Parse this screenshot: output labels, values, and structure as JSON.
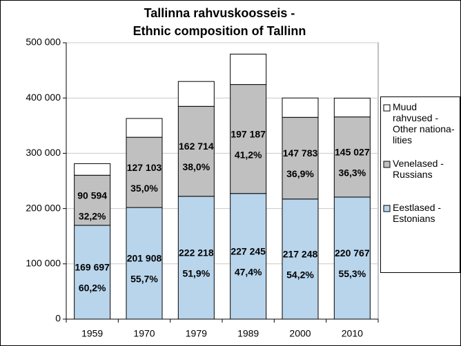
{
  "chart_data": {
    "type": "stacked_bar",
    "title": "Tallinna rahvuskoosseis -",
    "subtitle": "Ethnic composition of Tallinn",
    "categories": [
      "1959",
      "1970",
      "1979",
      "1989",
      "2000",
      "2010"
    ],
    "series": [
      {
        "name": "Eestlased - Estonians",
        "color": "#b9d5ec",
        "values": [
          169697,
          201908,
          222218,
          227245,
          217248,
          220767
        ],
        "value_labels": [
          "169 697",
          "201 908",
          "222 218",
          "227 245",
          "217 248",
          "220 767"
        ],
        "shares": [
          "60,2%",
          "55,7%",
          "51,9%",
          "47,4%",
          "54,2%",
          "55,3%"
        ]
      },
      {
        "name": "Venelased - Russians",
        "color": "#c0c0c0",
        "values": [
          90594,
          127103,
          162714,
          197187,
          147783,
          145027
        ],
        "value_labels": [
          "90 594",
          "127 103",
          "162 714",
          "197 187",
          "147 783",
          "145 027"
        ],
        "shares": [
          "32,2%",
          "35,0%",
          "38,0%",
          "41,2%",
          "36,9%",
          "36,3%"
        ]
      },
      {
        "name": "Muud rahvused - Other nationa-lities",
        "color": "#ffffff",
        "values": [
          21000,
          34000,
          45000,
          55000,
          35000,
          34000
        ]
      }
    ],
    "ylim": [
      0,
      500000
    ],
    "yticks": [
      0,
      {
        "value": 100000,
        "label": "100 000"
      },
      {
        "value": 200000,
        "label": "200 000"
      },
      {
        "value": 300000,
        "label": "300 000"
      },
      {
        "value": 400000,
        "label": "400 000"
      },
      {
        "value": 500000,
        "label": "500 000"
      }
    ],
    "grid": true,
    "legend": "right"
  }
}
